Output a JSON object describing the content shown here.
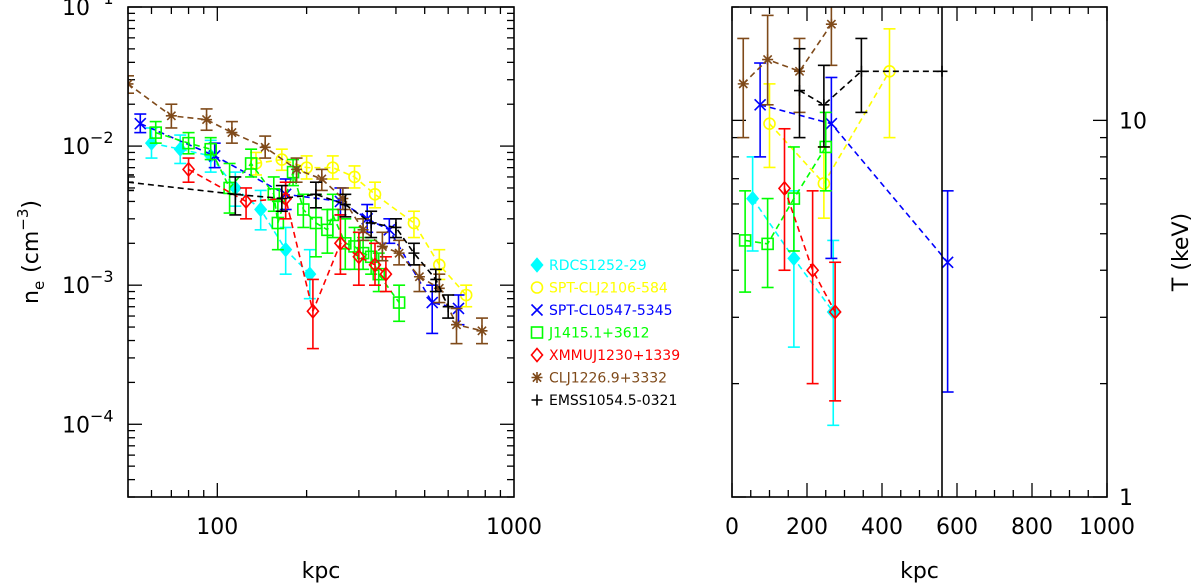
{
  "chart_data": [
    {
      "type": "scatter",
      "panel": "density",
      "xlabel": "kpc",
      "ylabel_main": "n",
      "ylabel_sub": "e",
      "ylabel_unit": "(cm",
      "ylabel_exp": "−3",
      "ylabel_close": ")",
      "xscale": "log",
      "yscale": "log",
      "xlim": [
        50,
        1000
      ],
      "ylim": [
        3e-05,
        0.1
      ],
      "xticks": [
        {
          "v": 100,
          "label": "100"
        },
        {
          "v": 1000,
          "label": "1000"
        }
      ],
      "yticks": [
        {
          "v": 0.1,
          "base": "10",
          "exp": "−1"
        },
        {
          "v": 0.01,
          "base": "10",
          "exp": "−2"
        },
        {
          "v": 0.001,
          "base": "10",
          "exp": "−3"
        },
        {
          "v": 0.0001,
          "base": "10",
          "exp": "−4"
        }
      ],
      "series": [
        {
          "name": "RDCS1252-29",
          "color": "#00ffff",
          "marker": "diamond-filled",
          "points": [
            [
              60,
              0.0105,
              0.0135,
              0.0082
            ],
            [
              75,
              0.0095,
              0.012,
              0.0075
            ],
            [
              95,
              0.0085,
              0.011,
              0.0065
            ],
            [
              115,
              0.005,
              0.0065,
              0.0037
            ],
            [
              140,
              0.0035,
              0.0048,
              0.0025
            ],
            [
              170,
              0.0018,
              0.0026,
              0.0012
            ],
            [
              205,
              0.0012,
              0.0018,
              0.0008
            ]
          ]
        },
        {
          "name": "SPT-CLJ2106-584",
          "color": "#ffff00",
          "marker": "circle",
          "points": [
            [
              135,
              0.0075,
              0.009,
              0.0062
            ],
            [
              165,
              0.008,
              0.0095,
              0.0067
            ],
            [
              200,
              0.007,
              0.0085,
              0.0058
            ],
            [
              245,
              0.007,
              0.0085,
              0.0058
            ],
            [
              290,
              0.006,
              0.0072,
              0.005
            ],
            [
              340,
              0.0045,
              0.0055,
              0.0036
            ],
            [
              460,
              0.0028,
              0.0034,
              0.0022
            ],
            [
              560,
              0.0014,
              0.0018,
              0.0011
            ],
            [
              690,
              0.00085,
              0.001,
              0.0007
            ]
          ]
        },
        {
          "name": "SPT-CL0547-5345",
          "color": "#0000ff",
          "marker": "cross",
          "points": [
            [
              55,
              0.0145,
              0.017,
              0.0125
            ],
            [
              98,
              0.0085,
              0.0105,
              0.007
            ],
            [
              170,
              0.0045,
              0.0058,
              0.0035
            ],
            [
              260,
              0.004,
              0.005,
              0.0032
            ],
            [
              320,
              0.003,
              0.0038,
              0.0024
            ],
            [
              380,
              0.0025,
              0.003,
              0.002
            ],
            [
              530,
              0.00075,
              0.001,
              0.00045
            ],
            [
              650,
              0.00068,
              0.00085,
              0.00052
            ]
          ]
        },
        {
          "name": "J1415.1+3612",
          "color": "#00ff00",
          "marker": "square",
          "points": [
            [
              62,
              0.0125,
              0.015,
              0.0105
            ],
            [
              80,
              0.0105,
              0.0125,
              0.0088
            ],
            [
              95,
              0.0095,
              0.0115,
              0.008
            ],
            [
              110,
              0.005,
              0.0075,
              0.0033
            ],
            [
              130,
              0.0075,
              0.0095,
              0.006
            ],
            [
              155,
              0.0045,
              0.006,
              0.0034
            ],
            [
              160,
              0.0028,
              0.004,
              0.0018
            ],
            [
              180,
              0.0065,
              0.008,
              0.0052
            ],
            [
              195,
              0.0035,
              0.0045,
              0.0026
            ],
            [
              215,
              0.0028,
              0.0045,
              0.0016
            ],
            [
              235,
              0.0025,
              0.0035,
              0.0017
            ],
            [
              245,
              0.0032,
              0.0045,
              0.0022
            ],
            [
              270,
              0.002,
              0.003,
              0.0013
            ],
            [
              290,
              0.0019,
              0.0026,
              0.0013
            ],
            [
              310,
              0.0017,
              0.0022,
              0.0013
            ],
            [
              330,
              0.0016,
              0.0021,
              0.0012
            ],
            [
              350,
              0.0012,
              0.0017,
              0.0009
            ],
            [
              410,
              0.00075,
              0.001,
              0.00055
            ]
          ]
        },
        {
          "name": "XMMUJ1230+1339",
          "color": "#ff0000",
          "marker": "diamond",
          "points": [
            [
              80,
              0.0068,
              0.0082,
              0.0055
            ],
            [
              125,
              0.004,
              0.005,
              0.003
            ],
            [
              170,
              0.0042,
              0.0055,
              0.003
            ],
            [
              210,
              0.00065,
              0.0011,
              0.00035
            ],
            [
              260,
              0.002,
              0.0032,
              0.0012
            ],
            [
              300,
              0.0016,
              0.0024,
              0.001
            ],
            [
              340,
              0.0014,
              0.002,
              0.001
            ],
            [
              370,
              0.0012,
              0.0016,
              0.0009
            ]
          ]
        },
        {
          "name": "CLJ1226.9+3332",
          "color": "#7f4a1a",
          "marker": "asterisk",
          "points": [
            [
              50,
              0.028,
              0.032,
              0.024
            ],
            [
              70,
              0.0165,
              0.02,
              0.0135
            ],
            [
              92,
              0.0155,
              0.0185,
              0.013
            ],
            [
              112,
              0.0125,
              0.015,
              0.0105
            ],
            [
              145,
              0.0098,
              0.0118,
              0.0082
            ],
            [
              185,
              0.0068,
              0.0082,
              0.0055
            ],
            [
              225,
              0.0058,
              0.0068,
              0.0048
            ],
            [
              265,
              0.0042,
              0.005,
              0.0035
            ],
            [
              310,
              0.0025,
              0.003,
              0.0021
            ],
            [
              360,
              0.0019,
              0.0024,
              0.0015
            ],
            [
              410,
              0.0017,
              0.0021,
              0.0014
            ],
            [
              480,
              0.00115,
              0.0014,
              0.0009
            ],
            [
              560,
              0.00095,
              0.0012,
              0.00075
            ],
            [
              640,
              0.00052,
              0.00068,
              0.00038
            ],
            [
              780,
              0.00047,
              0.00058,
              0.00038
            ]
          ]
        },
        {
          "name": "EMSS1054.5-0321",
          "color": "#000000",
          "marker": "plus",
          "points": [
            [
              50,
              0.0055,
              0.0062,
              0.0048
            ],
            [
              115,
              0.0045,
              0.006,
              0.0032
            ],
            [
              165,
              0.0042,
              0.0052,
              0.0034
            ],
            [
              215,
              0.0045,
              0.0055,
              0.0036
            ],
            [
              270,
              0.0038,
              0.0045,
              0.0031
            ],
            [
              330,
              0.0028,
              0.0034,
              0.0022
            ],
            [
              400,
              0.0026,
              0.003,
              0.0022
            ],
            [
              460,
              0.0017,
              0.002,
              0.0014
            ],
            [
              545,
              0.0011,
              0.0013,
              0.0009
            ],
            [
              600,
              0.0007,
              0.00085,
              0.00058
            ]
          ]
        }
      ]
    },
    {
      "type": "scatter",
      "panel": "temperature",
      "xlabel": "kpc",
      "ylabel": "T  (keV)",
      "xscale": "linear",
      "yscale": "log",
      "xlim": [
        0,
        1000
      ],
      "ylim": [
        1,
        20
      ],
      "xticks": [
        {
          "v": 0,
          "label": "0"
        },
        {
          "v": 200,
          "label": "200"
        },
        {
          "v": 400,
          "label": "400"
        },
        {
          "v": 600,
          "label": "600"
        },
        {
          "v": 800,
          "label": "800"
        },
        {
          "v": 1000,
          "label": "1000"
        }
      ],
      "yticks": [
        {
          "v": 10,
          "label": "10"
        },
        {
          "v": 1,
          "label": "1"
        }
      ],
      "vline_x": 560,
      "series": [
        {
          "name": "RDCS1252-29",
          "color": "#00ffff",
          "marker": "diamond-filled",
          "points": [
            [
              55,
              6.2,
              8,
              4.5
            ],
            [
              165,
              4.3,
              6.5,
              2.5
            ],
            [
              270,
              3.1,
              4.8,
              1.55
            ]
          ]
        },
        {
          "name": "SPT-CLJ2106-584",
          "color": "#ffff00",
          "marker": "circle",
          "points": [
            [
              100,
              9.8,
              12.5,
              7.5
            ],
            [
              245,
              6.8,
              8.5,
              5.5
            ],
            [
              420,
              13.5,
              17.5,
              9
            ]
          ]
        },
        {
          "name": "SPT-CL0547-5345",
          "color": "#0000ff",
          "marker": "cross",
          "points": [
            [
              75,
              11,
              14.2,
              8
            ],
            [
              265,
              9.8,
              13,
              4.3
            ],
            [
              575,
              4.2,
              6.5,
              1.9
            ]
          ]
        },
        {
          "name": "J1415.1+3612",
          "color": "#00ff00",
          "marker": "square",
          "points": [
            [
              35,
              4.8,
              6.5,
              3.5
            ],
            [
              95,
              4.7,
              6.2,
              3.6
            ],
            [
              165,
              6.2,
              8.5,
              4.5
            ],
            [
              250,
              8.5,
              10.5,
              6.5
            ]
          ]
        },
        {
          "name": "XMMUJ1230+1339",
          "color": "#ff0000",
          "marker": "diamond",
          "points": [
            [
              140,
              6.6,
              9.5,
              4
            ],
            [
              215,
              4,
              6.5,
              2
            ],
            [
              275,
              3.1,
              4.2,
              1.8
            ]
          ]
        },
        {
          "name": "CLJ1226.9+3332",
          "color": "#7f4a1a",
          "marker": "asterisk",
          "points": [
            [
              30,
              12.5,
              16.5,
              9
            ],
            [
              95,
              14.5,
              19,
              11
            ],
            [
              180,
              13.5,
              16.5,
              10.5
            ],
            [
              265,
              18,
              22,
              14
            ]
          ]
        },
        {
          "name": "EMSS1054.5-0321",
          "color": "#000000",
          "marker": "plus",
          "points": [
            [
              180,
              12,
              15.5,
              9
            ],
            [
              245,
              11,
              14,
              8.5
            ],
            [
              345,
              13.5,
              16.5,
              10.5
            ],
            [
              560,
              13.5,
              13.5,
              13.5
            ]
          ]
        }
      ]
    }
  ]
}
